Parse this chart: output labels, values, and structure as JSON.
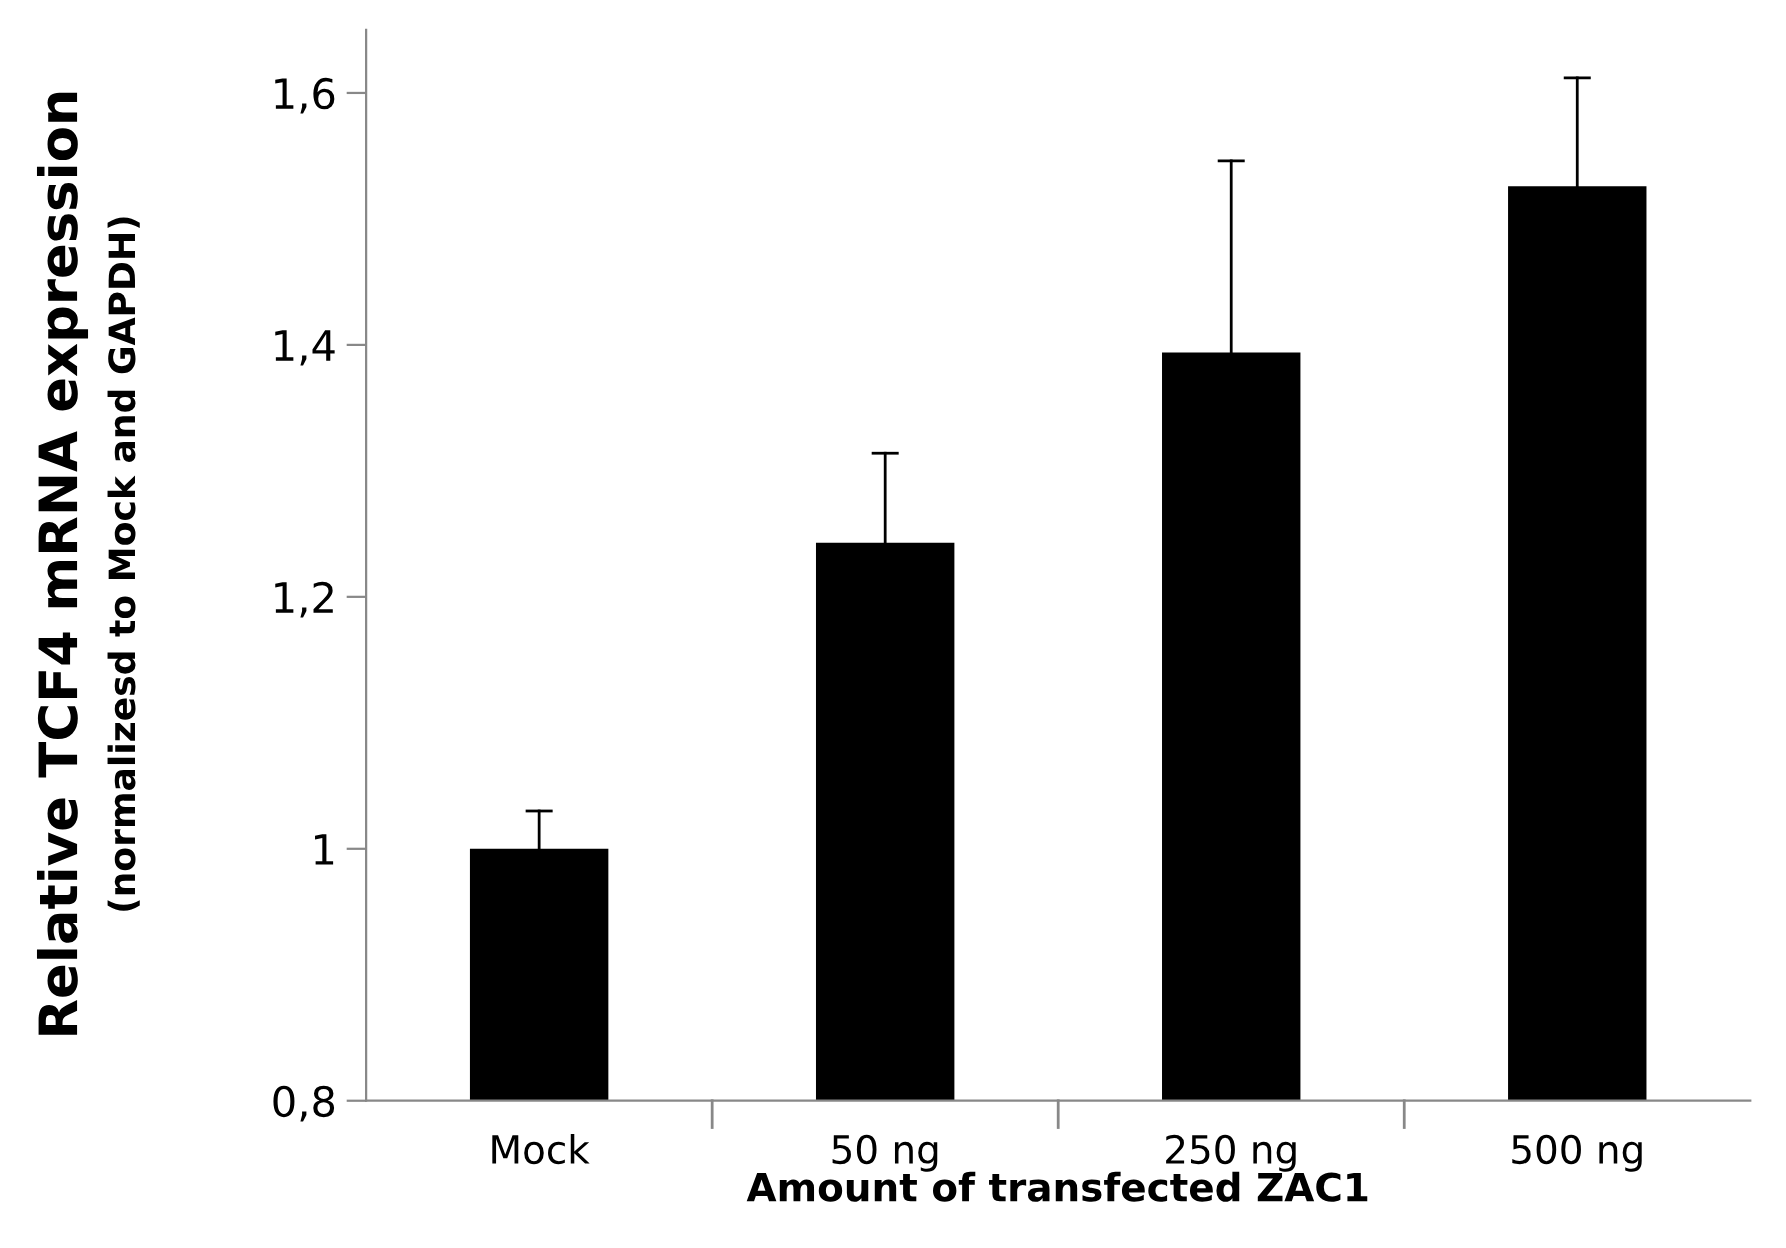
{
  "chart_data": {
    "type": "bar",
    "xlabel": "Amount of transfected ZAC1",
    "ylabel": "Relative TCF4 mRNA expression\n(normalizesd to Mock and GAPDH)",
    "categories": [
      "Mock",
      "50 ng",
      "250 ng",
      "500 ng"
    ],
    "values": [
      1.0,
      1.243,
      1.394,
      1.526
    ],
    "errors": [
      0.03,
      0.071,
      0.152,
      0.086
    ],
    "color": "#000000",
    "ylim": [
      0.8,
      1.65
    ],
    "yticks": [
      {
        "value": 0.8,
        "label": "0,8"
      },
      {
        "value": 1.0,
        "label": "1"
      },
      {
        "value": 1.2,
        "label": "1,2"
      },
      {
        "value": 1.4,
        "label": "1,4"
      },
      {
        "value": 1.6,
        "label": "1,6"
      }
    ],
    "grid": false,
    "legend": false
  }
}
